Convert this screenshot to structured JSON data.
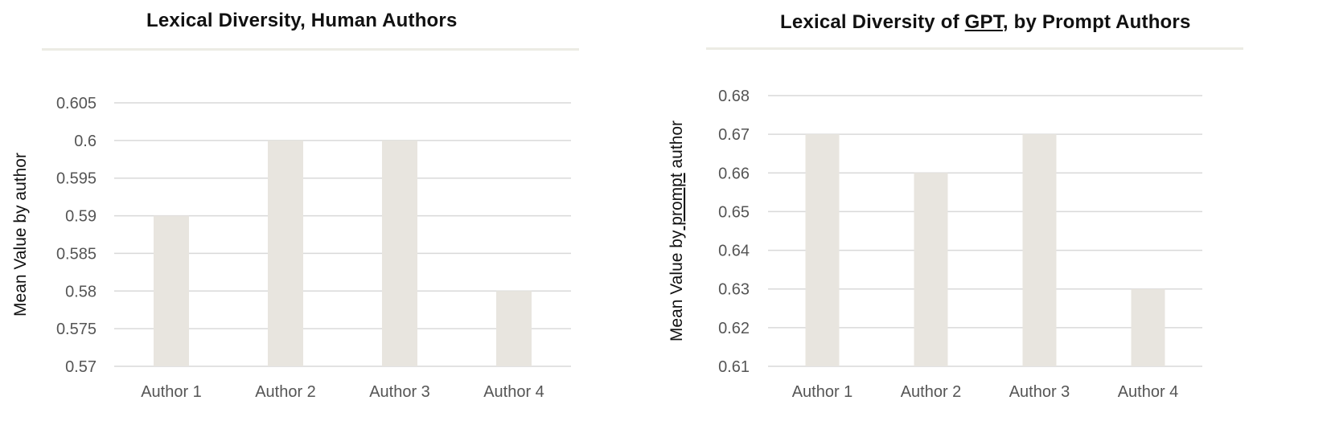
{
  "colors": {
    "bar": "#e8e5df",
    "grid": "#d9d9d9",
    "rule": "#ecebe4"
  },
  "chart_data": [
    {
      "type": "bar",
      "title": "Lexical Diversity, Human Authors",
      "ylabel": "Mean Value by author",
      "xlabel": "",
      "categories": [
        "Author 1",
        "Author 2",
        "Author 3",
        "Author 4"
      ],
      "values": [
        0.59,
        0.6,
        0.6,
        0.58
      ],
      "ylim": [
        0.57,
        0.605
      ],
      "yticks": [
        "0.57",
        "0.575",
        "0.58",
        "0.585",
        "0.59",
        "0.595",
        "0.6",
        "0.605"
      ],
      "grid": true,
      "legend": "none"
    },
    {
      "type": "bar",
      "title": "Lexical Diversity of GPT, by Prompt Authors",
      "ylabel": "Mean Value by prompt author",
      "xlabel": "",
      "categories": [
        "Author 1",
        "Author 2",
        "Author 3",
        "Author 4"
      ],
      "values": [
        0.67,
        0.66,
        0.67,
        0.63
      ],
      "ylim": [
        0.61,
        0.68
      ],
      "yticks": [
        "0.61",
        "0.62",
        "0.63",
        "0.64",
        "0.65",
        "0.66",
        "0.67",
        "0.68"
      ],
      "grid": true,
      "legend": "none"
    }
  ]
}
